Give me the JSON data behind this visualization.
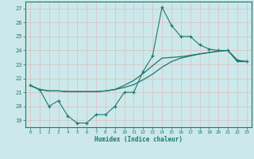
{
  "title": "",
  "xlabel": "Humidex (Indice chaleur)",
  "ylabel": "",
  "xlim": [
    -0.5,
    23.5
  ],
  "ylim": [
    18.5,
    27.5
  ],
  "xticks": [
    0,
    1,
    2,
    3,
    4,
    5,
    6,
    7,
    8,
    9,
    10,
    11,
    12,
    13,
    14,
    15,
    16,
    17,
    18,
    19,
    20,
    21,
    22,
    23
  ],
  "yticks": [
    19,
    20,
    21,
    22,
    23,
    24,
    25,
    26,
    27
  ],
  "background_color": "#cce8ea",
  "grid_color": "#ddbdbd",
  "line_color": "#1a7a6e",
  "line1_x": [
    0,
    1,
    2,
    3,
    4,
    5,
    6,
    7,
    8,
    9,
    10,
    11,
    12,
    13,
    14,
    15,
    16,
    17,
    18,
    19,
    20,
    21,
    22,
    23
  ],
  "line1_y": [
    21.5,
    21.2,
    20.0,
    20.4,
    19.3,
    18.8,
    18.8,
    19.4,
    19.4,
    20.0,
    21.0,
    21.0,
    22.5,
    23.6,
    27.1,
    25.8,
    25.0,
    25.0,
    24.4,
    24.1,
    24.0,
    24.0,
    23.3,
    23.2
  ],
  "line2_x": [
    0,
    1,
    2,
    3,
    4,
    5,
    6,
    7,
    8,
    9,
    10,
    11,
    12,
    13,
    14,
    15,
    16,
    17,
    18,
    19,
    20,
    21,
    22,
    23
  ],
  "line2_y": [
    21.5,
    21.2,
    21.1,
    21.1,
    21.05,
    21.05,
    21.05,
    21.05,
    21.1,
    21.2,
    21.35,
    21.55,
    21.9,
    22.3,
    22.8,
    23.2,
    23.45,
    23.6,
    23.75,
    23.85,
    23.95,
    24.0,
    23.2,
    23.2
  ],
  "line3_x": [
    0,
    1,
    2,
    3,
    4,
    5,
    6,
    7,
    8,
    9,
    10,
    11,
    12,
    13,
    14,
    15,
    16,
    17,
    18,
    19,
    20,
    21,
    22,
    23
  ],
  "line3_y": [
    21.5,
    21.2,
    21.1,
    21.1,
    21.05,
    21.05,
    21.05,
    21.05,
    21.1,
    21.2,
    21.5,
    21.85,
    22.35,
    22.9,
    23.45,
    23.5,
    23.55,
    23.65,
    23.75,
    23.85,
    23.95,
    24.0,
    23.3,
    23.2
  ]
}
